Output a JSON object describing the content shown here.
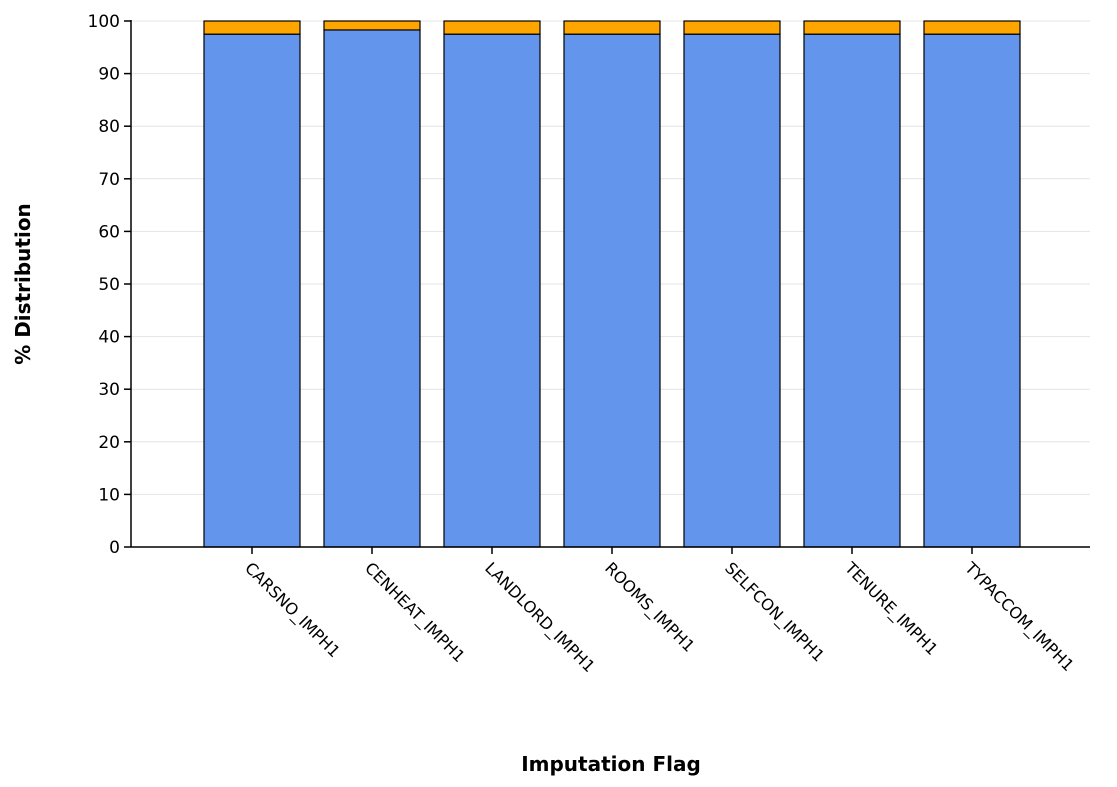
{
  "chart_data": {
    "type": "bar",
    "stacked": true,
    "title": "",
    "xlabel": "Imputation Flag",
    "ylabel": "% Distribution",
    "ylim": [
      0,
      100
    ],
    "yticks": [
      0,
      10,
      20,
      30,
      40,
      50,
      60,
      70,
      80,
      90,
      100
    ],
    "grid": true,
    "legend": "none",
    "categories": [
      "CARSNO_IMPH1",
      "CENHEAT_IMPH1",
      "LANDLORD_IMPH1",
      "ROOMS_IMPH1",
      "SELFCON_IMPH1",
      "TENURE_IMPH1",
      "TYPACCOM_IMPH1"
    ],
    "series": [
      {
        "color": "#6495ED",
        "values": [
          97.5,
          98.3,
          97.5,
          97.5,
          97.5,
          97.5,
          97.5
        ]
      },
      {
        "color": "#FFA500",
        "values": [
          2.5,
          1.7,
          2.5,
          2.5,
          2.5,
          2.5,
          2.5
        ]
      }
    ]
  }
}
